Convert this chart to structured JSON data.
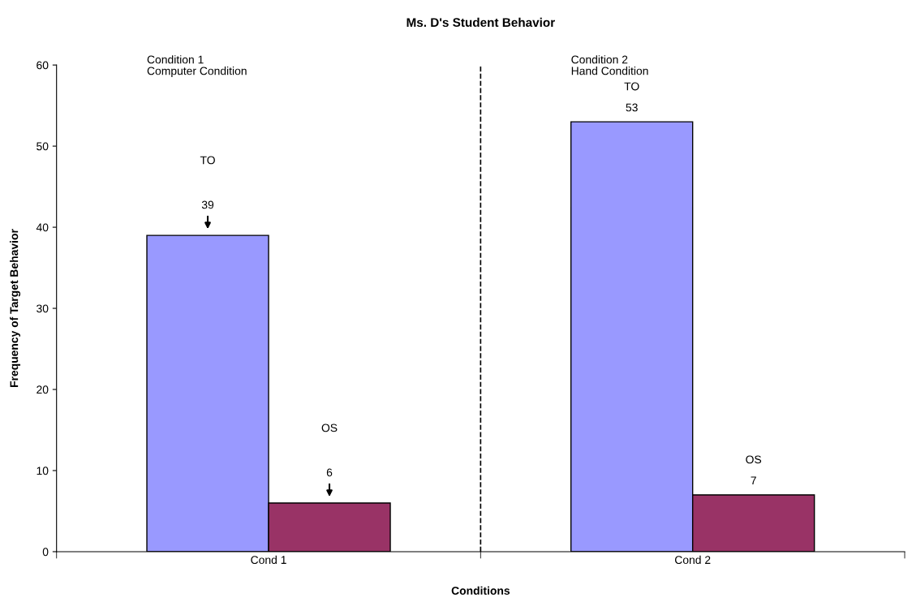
{
  "chart_data": {
    "type": "bar",
    "title": "Ms. D's Student Behavior",
    "xlabel": "Conditions",
    "ylabel": "Frequency of Target Behavior",
    "categories": [
      "Cond 1",
      "Cond 2"
    ],
    "series": [
      {
        "name": "TO",
        "color": "#9999ff",
        "values": [
          39,
          53
        ],
        "value_labels": [
          "39",
          "53"
        ]
      },
      {
        "name": "OS",
        "color": "#993366",
        "values": [
          6,
          7
        ],
        "value_labels": [
          "6",
          "7"
        ]
      }
    ],
    "ylim": [
      0,
      60
    ],
    "yticks": [
      0,
      10,
      20,
      30,
      40,
      50,
      60
    ],
    "grid": false,
    "legend": false,
    "annotations": [
      "Condition 1\nComputer Condition",
      "Condition 2\nHand Condition"
    ]
  }
}
